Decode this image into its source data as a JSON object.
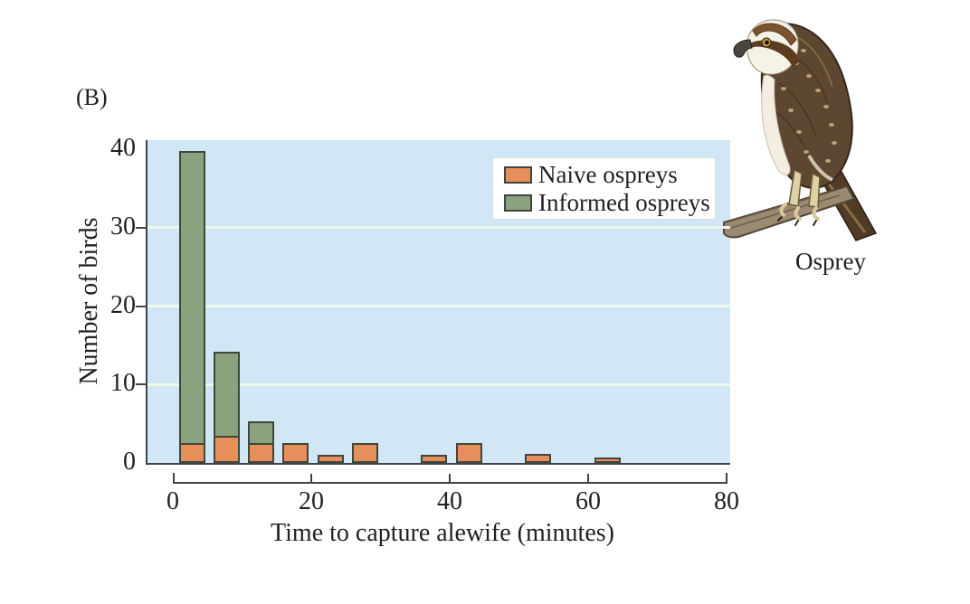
{
  "figure": {
    "panel_label": "(B)",
    "illustration": {
      "caption": "Osprey"
    }
  },
  "chart_data": {
    "type": "bar",
    "stacked": true,
    "xlabel": "Time to capture alewife (minutes)",
    "ylabel": "Number of birds",
    "xlim": [
      0,
      80
    ],
    "ylim": [
      0,
      41
    ],
    "x_ticks": [
      0,
      20,
      40,
      60,
      80
    ],
    "y_ticks": [
      0,
      10,
      20,
      30,
      40
    ],
    "grid": {
      "y_values": [
        10,
        20,
        30
      ],
      "color": "#f0f8ee"
    },
    "legend_position": "top-right",
    "plot_bg": "#d2e7f5",
    "bar_border": "#3f463b",
    "axis_color": "#3e4447",
    "bin_width_minutes": 5,
    "bin_centers": [
      2.5,
      7.5,
      12.5,
      17.5,
      22.5,
      27.5,
      32.5,
      37.5,
      42.5,
      47.5,
      52.5,
      57.5,
      62.5
    ],
    "series": [
      {
        "name": "Naive ospreys",
        "color": "#e68f5b",
        "values": [
          2.5,
          3.5,
          2.5,
          2.5,
          1,
          2.5,
          0,
          1,
          2.5,
          0,
          1.2,
          0,
          0.5
        ]
      },
      {
        "name": "Informed ospreys",
        "color": "#8aa37d",
        "values": [
          37.5,
          11,
          3,
          0,
          0,
          0,
          0,
          0,
          0,
          0,
          0,
          0,
          0
        ]
      }
    ]
  }
}
